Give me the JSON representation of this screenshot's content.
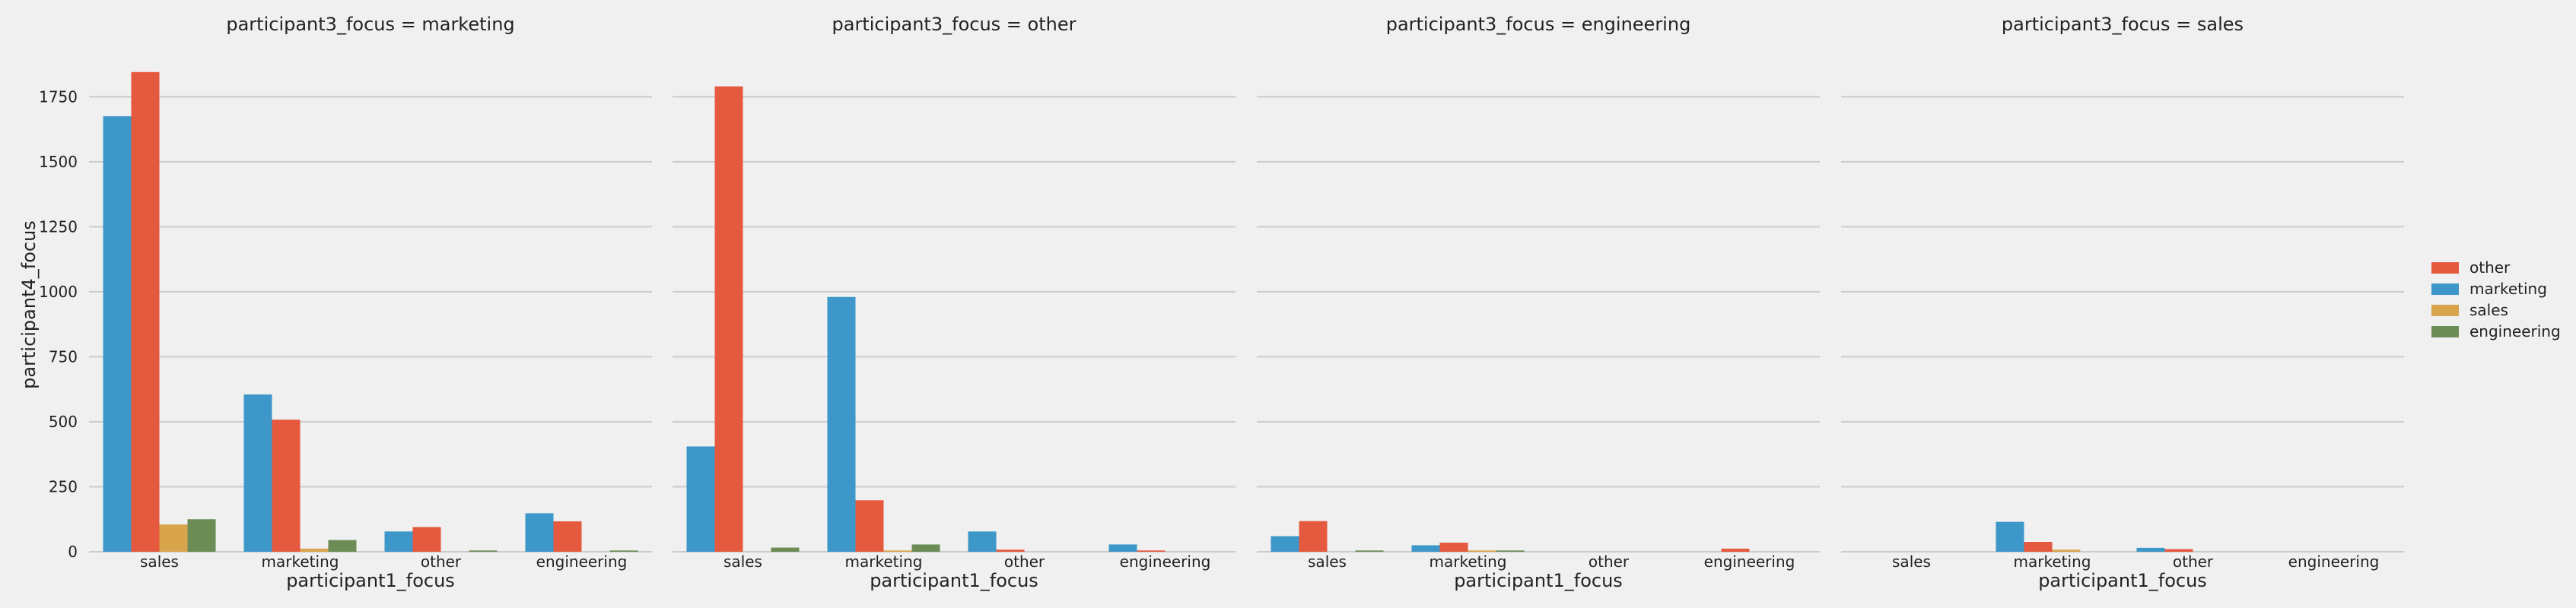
{
  "chart_data": {
    "type": "bar",
    "ylabel": "participant4_focus",
    "xlabel": "participant1_focus",
    "ylim": [
      0,
      1900
    ],
    "yticks": [
      0,
      250,
      500,
      750,
      1000,
      1250,
      1500,
      1750
    ],
    "categories": [
      "sales",
      "marketing",
      "other",
      "engineering"
    ],
    "hue_order": [
      "marketing",
      "other",
      "sales",
      "engineering"
    ],
    "legend": {
      "placement": "right",
      "entries": [
        "other",
        "marketing",
        "sales",
        "engineering"
      ]
    },
    "colors": {
      "other": "#e5593f",
      "marketing": "#3d97c9",
      "sales": "#d8a54c",
      "engineering": "#6c8c55"
    },
    "grid": true,
    "panels": [
      {
        "title": "participant3_focus = marketing",
        "series": [
          {
            "name": "marketing",
            "values": [
              1675,
              605,
              78,
              148
            ]
          },
          {
            "name": "other",
            "values": [
              1845,
              508,
              95,
              117
            ]
          },
          {
            "name": "sales",
            "values": [
              105,
              12,
              0,
              0
            ]
          },
          {
            "name": "engineering",
            "values": [
              125,
              45,
              5,
              5
            ]
          }
        ]
      },
      {
        "title": "participant3_focus = other",
        "series": [
          {
            "name": "marketing",
            "values": [
              405,
              980,
              78,
              28
            ]
          },
          {
            "name": "other",
            "values": [
              1790,
              198,
              8,
              5
            ]
          },
          {
            "name": "sales",
            "values": [
              0,
              5,
              0,
              0
            ]
          },
          {
            "name": "engineering",
            "values": [
              16,
              28,
              0,
              0
            ]
          }
        ]
      },
      {
        "title": "participant3_focus = engineering",
        "series": [
          {
            "name": "marketing",
            "values": [
              60,
              25,
              0,
              0
            ]
          },
          {
            "name": "other",
            "values": [
              118,
              35,
              0,
              12
            ]
          },
          {
            "name": "sales",
            "values": [
              0,
              5,
              0,
              0
            ]
          },
          {
            "name": "engineering",
            "values": [
              5,
              5,
              0,
              0
            ]
          }
        ]
      },
      {
        "title": "participant3_focus = sales",
        "series": [
          {
            "name": "marketing",
            "values": [
              0,
              115,
              15,
              0
            ]
          },
          {
            "name": "other",
            "values": [
              0,
              38,
              10,
              0
            ]
          },
          {
            "name": "sales",
            "values": [
              0,
              8,
              0,
              0
            ]
          },
          {
            "name": "engineering",
            "values": [
              0,
              0,
              0,
              0
            ]
          }
        ]
      }
    ]
  }
}
